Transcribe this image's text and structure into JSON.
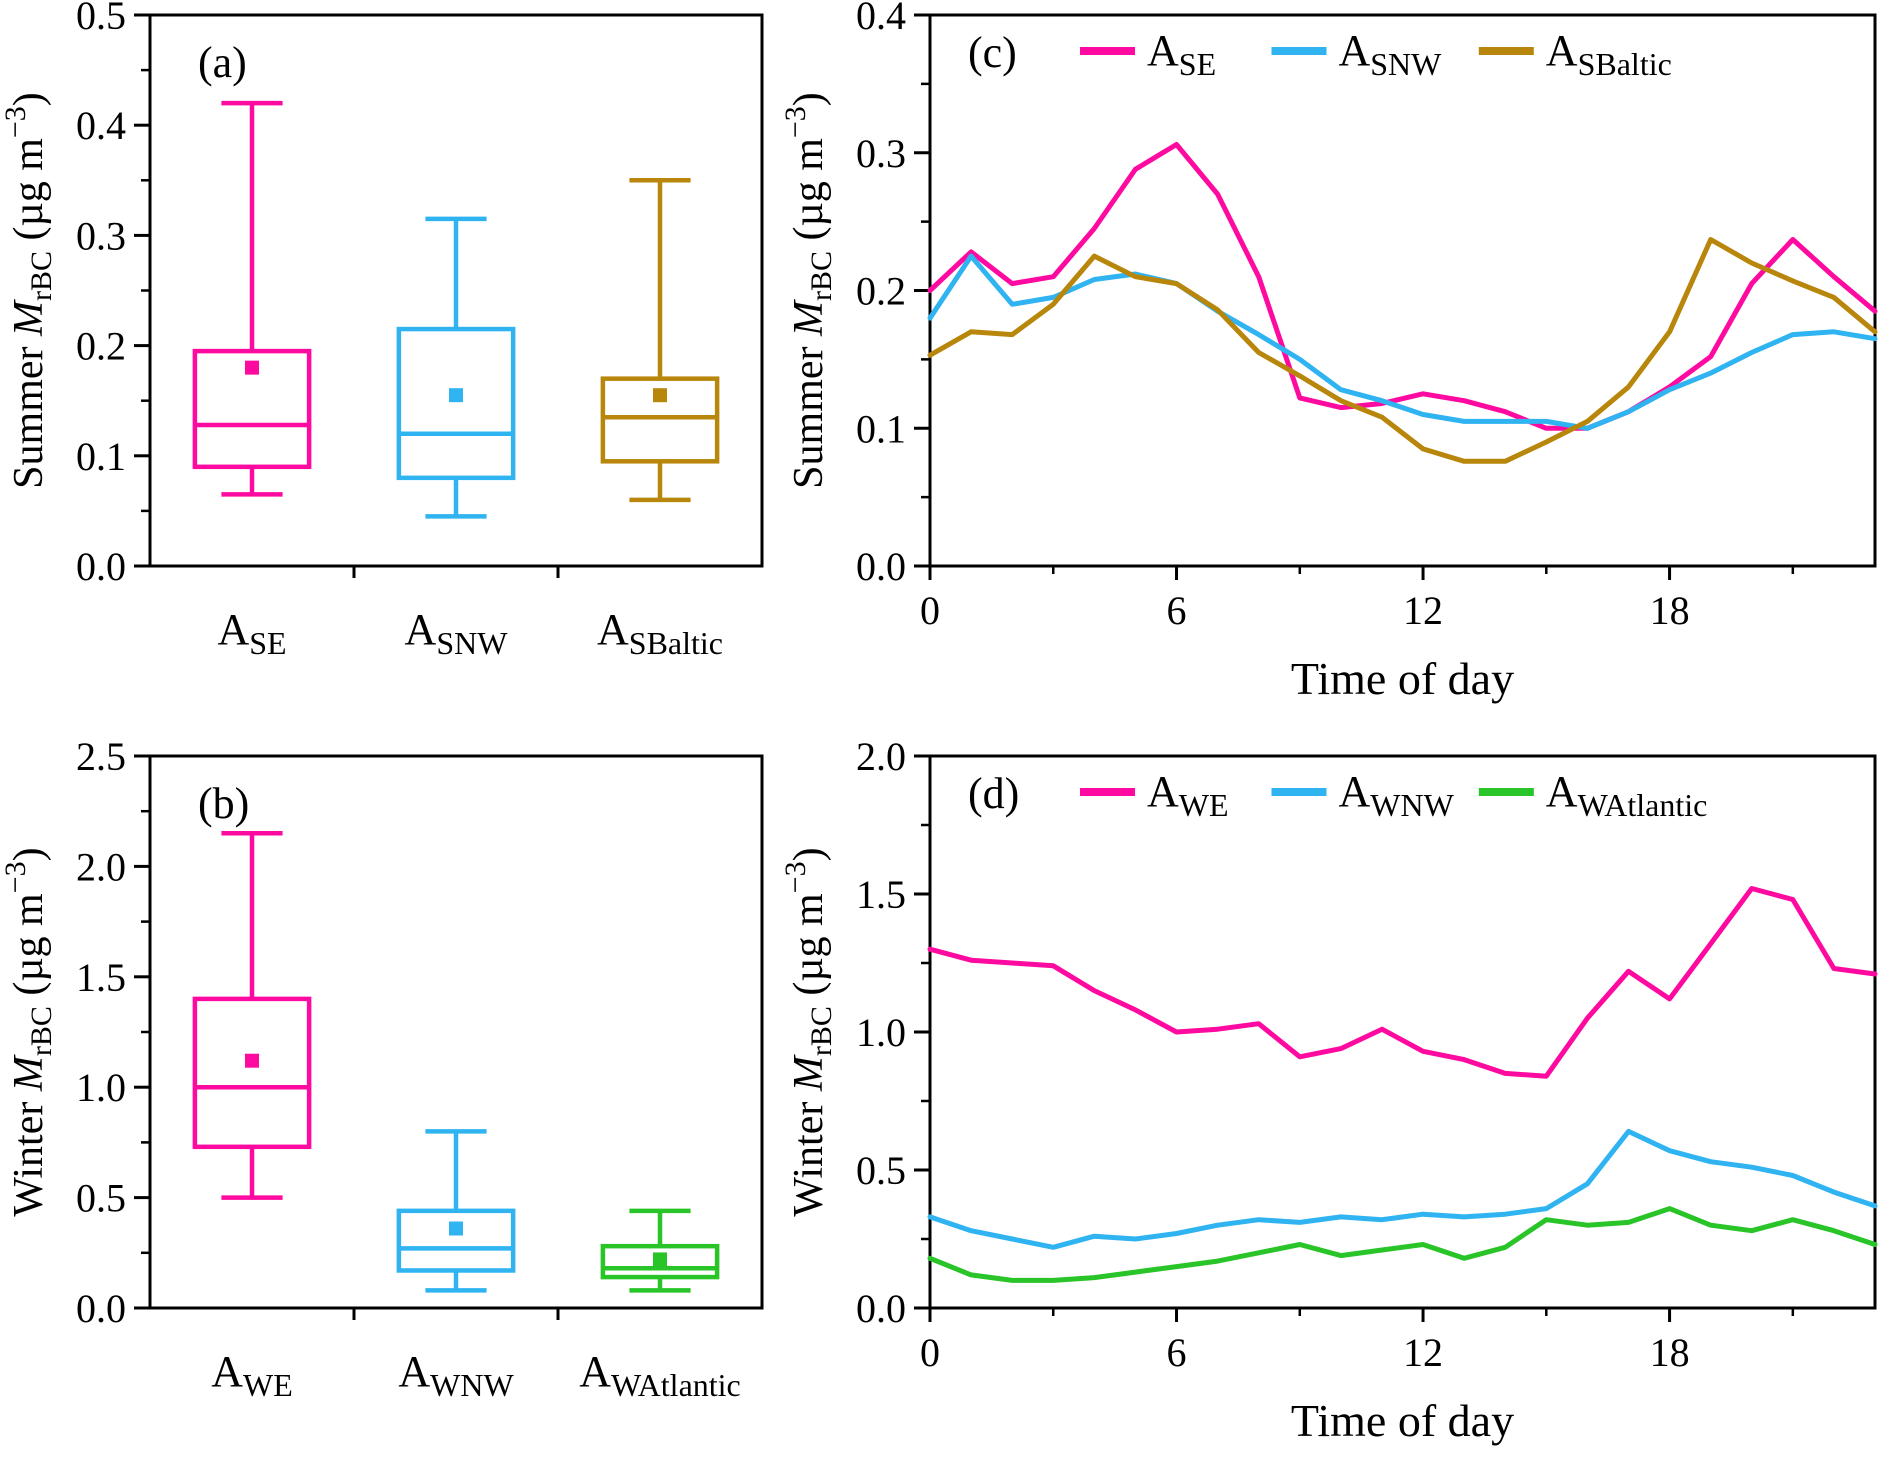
{
  "chart_data": [
    {
      "id": "a",
      "type": "box",
      "panel_label": "(a)",
      "ylabel": {
        "prefix": "Summer ",
        "var": "M",
        "var_sub": "rBC",
        "mid": " (µg m",
        "sup": "−3",
        "suffix": ")"
      },
      "ylim": [
        0,
        0.5
      ],
      "yticks": [
        0,
        0.1,
        0.2,
        0.3,
        0.4,
        0.5
      ],
      "categories": [
        {
          "main": "A",
          "sub": "SE"
        },
        {
          "main": "A",
          "sub": "SNW"
        },
        {
          "main": "A",
          "sub": "SBaltic"
        }
      ],
      "colors": [
        "#FF0AA0",
        "#2FB3F1",
        "#B8860B"
      ],
      "boxes": [
        {
          "whisker_low": 0.065,
          "q1": 0.09,
          "median": 0.128,
          "q3": 0.195,
          "whisker_high": 0.42,
          "mean": 0.18
        },
        {
          "whisker_low": 0.045,
          "q1": 0.08,
          "median": 0.12,
          "q3": 0.215,
          "whisker_high": 0.315,
          "mean": 0.155
        },
        {
          "whisker_low": 0.06,
          "q1": 0.095,
          "median": 0.135,
          "q3": 0.17,
          "whisker_high": 0.35,
          "mean": 0.155
        }
      ]
    },
    {
      "id": "b",
      "type": "box",
      "panel_label": "(b)",
      "ylabel": {
        "prefix": "Winter ",
        "var": "M",
        "var_sub": "rBC",
        "mid": " (µg m",
        "sup": "−3",
        "suffix": ")"
      },
      "ylim": [
        0,
        2.5
      ],
      "yticks": [
        0,
        0.5,
        1.0,
        1.5,
        2.0,
        2.5
      ],
      "categories": [
        {
          "main": "A",
          "sub": "WE"
        },
        {
          "main": "A",
          "sub": "WNW"
        },
        {
          "main": "A",
          "sub": "WAtlantic"
        }
      ],
      "colors": [
        "#FF0AA0",
        "#2FB3F1",
        "#28C428"
      ],
      "boxes": [
        {
          "whisker_low": 0.5,
          "q1": 0.73,
          "median": 1.0,
          "q3": 1.4,
          "whisker_high": 2.15,
          "mean": 1.12
        },
        {
          "whisker_low": 0.08,
          "q1": 0.17,
          "median": 0.27,
          "q3": 0.44,
          "whisker_high": 0.8,
          "mean": 0.36
        },
        {
          "whisker_low": 0.08,
          "q1": 0.14,
          "median": 0.18,
          "q3": 0.28,
          "whisker_high": 0.44,
          "mean": 0.22
        }
      ]
    },
    {
      "id": "c",
      "type": "line",
      "panel_label": "(c)",
      "ylabel": {
        "prefix": "Summer ",
        "var": "M",
        "var_sub": "rBC",
        "mid": " (µg m",
        "sup": "−3",
        "suffix": ")"
      },
      "xlabel": "Time of day",
      "xlim": [
        0,
        23
      ],
      "xticks": [
        0,
        6,
        12,
        18
      ],
      "ylim": [
        0,
        0.4
      ],
      "yticks": [
        0,
        0.1,
        0.2,
        0.3,
        0.4
      ],
      "series": [
        {
          "name": {
            "main": "A",
            "sub": "SE"
          },
          "color": "#FF0AA0",
          "values": [
            0.2,
            0.228,
            0.205,
            0.21,
            0.245,
            0.288,
            0.306,
            0.27,
            0.21,
            0.122,
            0.115,
            0.118,
            0.125,
            0.12,
            0.112,
            0.1,
            0.1,
            0.112,
            0.13,
            0.152,
            0.205,
            0.237,
            0.21,
            0.185
          ]
        },
        {
          "name": {
            "main": "A",
            "sub": "SNW"
          },
          "color": "#2FB3F1",
          "values": [
            0.18,
            0.225,
            0.19,
            0.195,
            0.208,
            0.212,
            0.205,
            0.185,
            0.168,
            0.15,
            0.128,
            0.12,
            0.11,
            0.105,
            0.105,
            0.105,
            0.1,
            0.112,
            0.128,
            0.14,
            0.155,
            0.168,
            0.17,
            0.165
          ]
        },
        {
          "name": {
            "main": "A",
            "sub": "SBaltic"
          },
          "color": "#B8860B",
          "values": [
            0.153,
            0.17,
            0.168,
            0.19,
            0.225,
            0.21,
            0.205,
            0.186,
            0.155,
            0.138,
            0.12,
            0.108,
            0.085,
            0.076,
            0.076,
            0.09,
            0.105,
            0.13,
            0.17,
            0.237,
            0.22,
            0.207,
            0.195,
            0.17
          ]
        }
      ]
    },
    {
      "id": "d",
      "type": "line",
      "panel_label": "(d)",
      "ylabel": {
        "prefix": "Winter ",
        "var": "M",
        "var_sub": "rBC",
        "mid": " (µg m",
        "sup": "−3",
        "suffix": ")"
      },
      "xlabel": "Time of day",
      "xlim": [
        0,
        23
      ],
      "xticks": [
        0,
        6,
        12,
        18
      ],
      "ylim": [
        0,
        2.0
      ],
      "yticks": [
        0,
        0.5,
        1.0,
        1.5,
        2.0
      ],
      "series": [
        {
          "name": {
            "main": "A",
            "sub": "WE"
          },
          "color": "#FF0AA0",
          "values": [
            1.3,
            1.26,
            1.25,
            1.24,
            1.15,
            1.08,
            1.0,
            1.01,
            1.03,
            0.91,
            0.94,
            1.01,
            0.93,
            0.9,
            0.85,
            0.84,
            1.05,
            1.22,
            1.12,
            1.32,
            1.52,
            1.48,
            1.23,
            1.21
          ]
        },
        {
          "name": {
            "main": "A",
            "sub": "WNW"
          },
          "color": "#2FB3F1",
          "values": [
            0.33,
            0.28,
            0.25,
            0.22,
            0.26,
            0.25,
            0.27,
            0.3,
            0.32,
            0.31,
            0.33,
            0.32,
            0.34,
            0.33,
            0.34,
            0.36,
            0.45,
            0.64,
            0.57,
            0.53,
            0.51,
            0.48,
            0.42,
            0.37
          ]
        },
        {
          "name": {
            "main": "A",
            "sub": "WAtlantic"
          },
          "color": "#28C428",
          "values": [
            0.18,
            0.12,
            0.1,
            0.1,
            0.11,
            0.13,
            0.15,
            0.17,
            0.2,
            0.23,
            0.19,
            0.21,
            0.23,
            0.18,
            0.22,
            0.32,
            0.3,
            0.31,
            0.36,
            0.3,
            0.28,
            0.32,
            0.28,
            0.23
          ]
        }
      ]
    }
  ]
}
